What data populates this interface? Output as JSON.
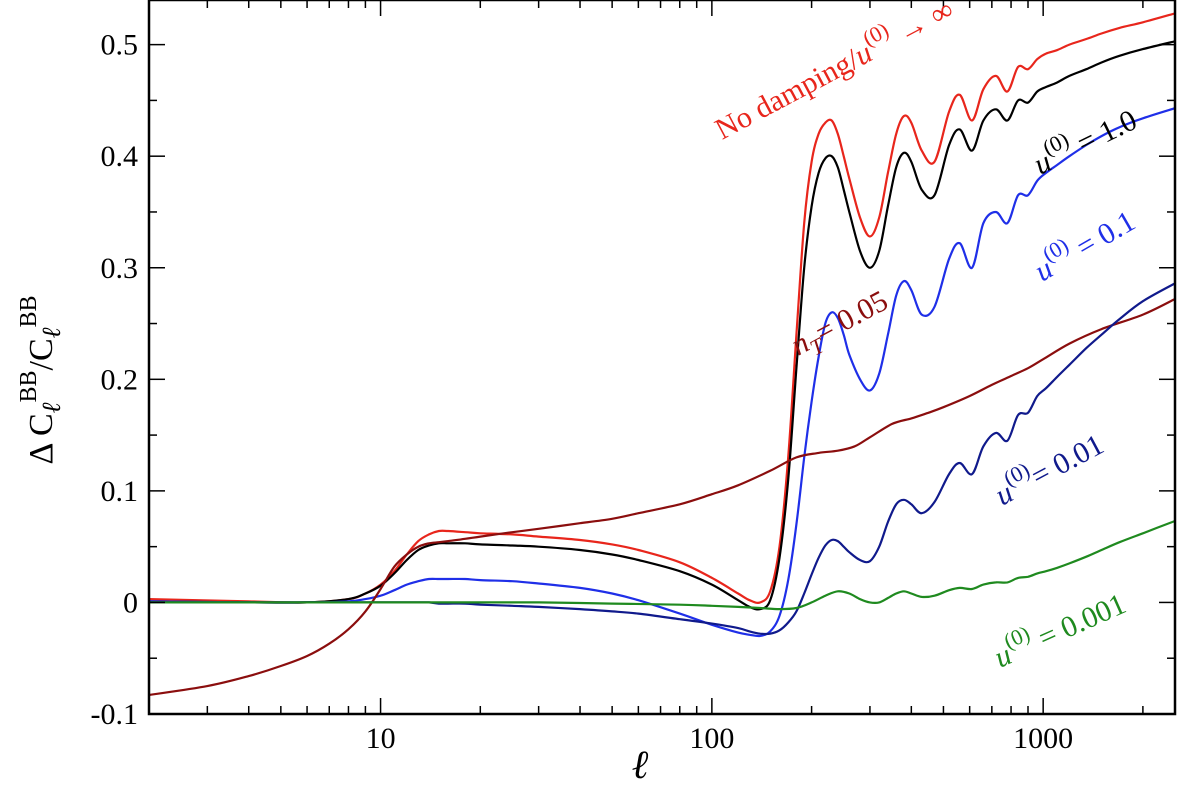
{
  "chart_data": {
    "type": "line",
    "xlabel": "ℓ",
    "ylabel": "Δ C_ℓ^BB/C_ℓ^BB",
    "xscale": "log",
    "xlim": [
      2,
      2500
    ],
    "ylim": [
      -0.1,
      0.54
    ],
    "grid": false,
    "x_ticks": [
      10,
      100,
      1000
    ],
    "x_tick_labels": [
      "10",
      "100",
      "1000"
    ],
    "y_ticks": [
      -0.1,
      0,
      0.1,
      0.2,
      0.3,
      0.4,
      0.5
    ],
    "y_tick_labels": [
      "-0.1",
      "0",
      "0.1",
      "0.2",
      "0.3",
      "0.4",
      "0.5"
    ],
    "series": [
      {
        "name": "No damping/u(0) → ∞",
        "label_main": "No damping/",
        "label_var": "u",
        "label_sup": "(0)",
        "label_tail": " → ∞",
        "color": "#e8261c",
        "x": [
          2,
          4,
          6,
          8,
          9,
          10,
          11,
          12,
          13,
          14,
          15,
          16,
          18,
          20,
          25,
          30,
          40,
          50,
          60,
          80,
          100,
          120,
          130,
          140,
          150,
          160,
          170,
          180,
          190,
          200,
          210,
          220,
          230,
          240,
          250,
          260,
          280,
          300,
          320,
          340,
          360,
          380,
          400,
          430,
          470,
          520,
          560,
          610,
          660,
          720,
          780,
          840,
          900,
          960,
          1020,
          1100,
          1200,
          1350,
          1500,
          1700,
          2000,
          2500
        ],
        "y": [
          0.003,
          0.001,
          0.0,
          0.003,
          0.008,
          0.016,
          0.028,
          0.043,
          0.055,
          0.061,
          0.064,
          0.064,
          0.063,
          0.062,
          0.061,
          0.059,
          0.056,
          0.052,
          0.047,
          0.036,
          0.022,
          0.008,
          0.002,
          0.0,
          0.01,
          0.05,
          0.13,
          0.24,
          0.34,
          0.395,
          0.42,
          0.43,
          0.432,
          0.42,
          0.4,
          0.38,
          0.345,
          0.328,
          0.345,
          0.385,
          0.42,
          0.436,
          0.43,
          0.405,
          0.395,
          0.44,
          0.455,
          0.432,
          0.46,
          0.472,
          0.458,
          0.48,
          0.478,
          0.487,
          0.492,
          0.495,
          0.5,
          0.505,
          0.51,
          0.515,
          0.52,
          0.528
        ]
      },
      {
        "name": "u(0) = 1.0",
        "label_var": "u",
        "label_sup": "(0)",
        "label_tail": " = 1.0",
        "color": "#000000",
        "x": [
          2,
          4,
          6,
          8,
          9,
          10,
          11,
          12,
          13,
          14,
          15,
          16,
          18,
          20,
          25,
          30,
          40,
          50,
          60,
          80,
          100,
          120,
          130,
          140,
          150,
          160,
          170,
          180,
          190,
          200,
          210,
          220,
          230,
          240,
          250,
          260,
          280,
          300,
          320,
          340,
          360,
          380,
          400,
          430,
          470,
          520,
          560,
          610,
          660,
          720,
          780,
          840,
          900,
          960,
          1020,
          1100,
          1200,
          1350,
          1500,
          1700,
          2000,
          2500
        ],
        "y": [
          0.001,
          0.0,
          0.0,
          0.003,
          0.008,
          0.015,
          0.026,
          0.038,
          0.047,
          0.051,
          0.053,
          0.053,
          0.053,
          0.052,
          0.051,
          0.05,
          0.047,
          0.043,
          0.038,
          0.028,
          0.016,
          0.002,
          -0.004,
          -0.006,
          0.002,
          0.04,
          0.11,
          0.21,
          0.3,
          0.355,
          0.385,
          0.398,
          0.4,
          0.39,
          0.37,
          0.35,
          0.315,
          0.3,
          0.315,
          0.355,
          0.39,
          0.403,
          0.395,
          0.37,
          0.365,
          0.41,
          0.424,
          0.405,
          0.432,
          0.442,
          0.432,
          0.45,
          0.448,
          0.458,
          0.462,
          0.466,
          0.472,
          0.478,
          0.484,
          0.49,
          0.496,
          0.503
        ]
      },
      {
        "name": "u(0) = 0.1",
        "label_var": "u",
        "label_sup": "(0)",
        "label_tail": " = 0.1",
        "color": "#1f2fe8",
        "x": [
          2,
          4,
          6,
          8,
          9,
          10,
          11,
          12,
          13,
          14,
          15,
          16,
          18,
          20,
          25,
          30,
          40,
          50,
          60,
          80,
          100,
          120,
          130,
          140,
          150,
          160,
          170,
          180,
          190,
          200,
          210,
          220,
          230,
          240,
          250,
          260,
          280,
          300,
          320,
          340,
          360,
          380,
          400,
          430,
          470,
          520,
          560,
          610,
          660,
          720,
          780,
          840,
          900,
          960,
          1020,
          1100,
          1200,
          1350,
          1500,
          1700,
          2000,
          2500
        ],
        "y": [
          0.001,
          0.0,
          0.0,
          0.001,
          0.003,
          0.006,
          0.011,
          0.016,
          0.019,
          0.021,
          0.021,
          0.021,
          0.021,
          0.02,
          0.019,
          0.017,
          0.013,
          0.008,
          0.002,
          -0.01,
          -0.02,
          -0.027,
          -0.029,
          -0.03,
          -0.026,
          -0.012,
          0.02,
          0.07,
          0.13,
          0.18,
          0.22,
          0.25,
          0.26,
          0.255,
          0.24,
          0.222,
          0.2,
          0.19,
          0.205,
          0.24,
          0.275,
          0.288,
          0.28,
          0.258,
          0.265,
          0.308,
          0.322,
          0.3,
          0.34,
          0.35,
          0.34,
          0.365,
          0.365,
          0.378,
          0.385,
          0.392,
          0.4,
          0.41,
          0.418,
          0.426,
          0.434,
          0.443
        ]
      },
      {
        "name": "nT = 0.05",
        "label_var": "n",
        "label_sub": "T",
        "label_tail": "= 0.05",
        "color": "#8b0e0e",
        "x": [
          2,
          3,
          4,
          5,
          6,
          7,
          8,
          9,
          10,
          11,
          12,
          13,
          14,
          15,
          16,
          18,
          20,
          25,
          30,
          40,
          50,
          60,
          80,
          100,
          120,
          150,
          180,
          210,
          240,
          270,
          300,
          350,
          400,
          450,
          500,
          600,
          700,
          800,
          900,
          1000,
          1200,
          1500,
          2000,
          2500
        ],
        "y": [
          -0.083,
          -0.075,
          -0.066,
          -0.057,
          -0.048,
          -0.037,
          -0.024,
          -0.008,
          0.012,
          0.032,
          0.043,
          0.05,
          0.053,
          0.054,
          0.055,
          0.057,
          0.059,
          0.063,
          0.066,
          0.071,
          0.075,
          0.08,
          0.088,
          0.097,
          0.105,
          0.118,
          0.13,
          0.134,
          0.136,
          0.14,
          0.148,
          0.16,
          0.165,
          0.17,
          0.175,
          0.185,
          0.195,
          0.203,
          0.21,
          0.218,
          0.232,
          0.245,
          0.258,
          0.272
        ]
      },
      {
        "name": "u(0)= 0.01",
        "label_var": "u",
        "label_sup": "(0)",
        "label_tail": "= 0.01",
        "color": "#101a8c",
        "x": [
          2,
          4,
          6,
          8,
          9,
          10,
          11,
          12,
          13,
          14,
          15,
          16,
          18,
          20,
          25,
          30,
          40,
          50,
          60,
          80,
          100,
          120,
          130,
          140,
          150,
          160,
          170,
          180,
          190,
          200,
          210,
          220,
          230,
          240,
          250,
          260,
          280,
          300,
          320,
          340,
          360,
          380,
          400,
          430,
          470,
          520,
          560,
          610,
          660,
          720,
          780,
          840,
          900,
          960,
          1020,
          1100,
          1200,
          1350,
          1500,
          1700,
          2000,
          2500
        ],
        "y": [
          0.0,
          0.0,
          0.0,
          0.0,
          0.0,
          0.0,
          0.0,
          0.0,
          0.0,
          0.0,
          -0.001,
          -0.001,
          -0.001,
          -0.002,
          -0.003,
          -0.004,
          -0.006,
          -0.008,
          -0.01,
          -0.015,
          -0.019,
          -0.023,
          -0.026,
          -0.028,
          -0.028,
          -0.025,
          -0.018,
          -0.008,
          0.008,
          0.025,
          0.04,
          0.051,
          0.056,
          0.055,
          0.05,
          0.045,
          0.038,
          0.037,
          0.05,
          0.072,
          0.088,
          0.092,
          0.088,
          0.08,
          0.09,
          0.115,
          0.125,
          0.115,
          0.14,
          0.152,
          0.145,
          0.168,
          0.17,
          0.185,
          0.192,
          0.202,
          0.213,
          0.228,
          0.24,
          0.254,
          0.27,
          0.286
        ]
      },
      {
        "name": "u(0) = 0.001",
        "label_var": "u",
        "label_sup": "(0)",
        "label_tail": " = 0.001",
        "color": "#1f8a1f",
        "x": [
          2,
          5,
          10,
          15,
          20,
          30,
          50,
          80,
          100,
          120,
          140,
          160,
          180,
          200,
          220,
          240,
          260,
          280,
          300,
          320,
          340,
          360,
          380,
          400,
          430,
          470,
          520,
          560,
          610,
          660,
          720,
          780,
          840,
          900,
          960,
          1020,
          1100,
          1200,
          1350,
          1500,
          1700,
          2000,
          2500
        ],
        "y": [
          0.0,
          0.0,
          0.0,
          0.0,
          0.0,
          0.0,
          -0.001,
          -0.002,
          -0.003,
          -0.004,
          -0.005,
          -0.006,
          -0.005,
          0.0,
          0.006,
          0.01,
          0.008,
          0.003,
          0.0,
          0.0,
          0.004,
          0.008,
          0.01,
          0.008,
          0.005,
          0.006,
          0.011,
          0.013,
          0.012,
          0.016,
          0.018,
          0.018,
          0.022,
          0.023,
          0.026,
          0.028,
          0.031,
          0.035,
          0.041,
          0.047,
          0.054,
          0.062,
          0.073
        ]
      }
    ]
  }
}
